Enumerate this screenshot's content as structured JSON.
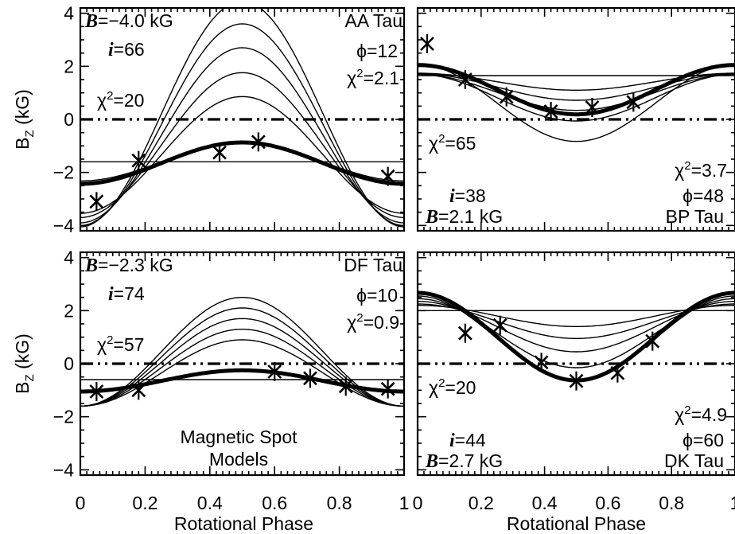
{
  "chart_data": [
    {
      "type": "line",
      "star": "AA Tau",
      "B_label": "B",
      "B_value": "=−4.0 kG",
      "i_label": "i",
      "i_value": "=66",
      "phi_text": "ϕ=12",
      "chi2_fit_value": "=2.1",
      "chi2_flat_value": "=20",
      "model_amplitude": -4.0,
      "flat_level": -1.6,
      "model_family": {
        "means": [
          -1.6,
          -1.34,
          -0.97,
          -0.6,
          -0.2,
          0.2
        ],
        "amplitudes": [
          0.72,
          2.2,
          2.73,
          3.3,
          3.8,
          4.25
        ]
      },
      "best_fit": {
        "mean": -1.65,
        "amplitude": 0.78,
        "phase_min": 0.0
      },
      "observations": {
        "x": [
          0.05,
          0.18,
          0.43,
          0.55,
          0.95
        ],
        "y": [
          -3.1,
          -1.55,
          -1.25,
          -0.85,
          -2.15
        ]
      },
      "xlim": [
        0,
        1
      ],
      "ylim": [
        -4.2,
        4.2
      ]
    },
    {
      "type": "line",
      "star": "BP Tau",
      "B_label": "B",
      "B_value": "=2.1 kG",
      "i_label": "i",
      "i_value": "=38",
      "phi_text": "ϕ=48",
      "chi2_fit_value": "=3.7",
      "chi2_flat_value": "=65",
      "model_amplitude": 2.1,
      "flat_level": 1.65,
      "model_family": {
        "means": [
          1.65,
          1.42,
          1.22,
          1.02,
          0.82,
          0.62
        ],
        "amplitudes": [
          0.05,
          0.32,
          0.5,
          0.68,
          0.88,
          1.45
        ]
      },
      "best_fit": {
        "mean": 1.12,
        "amplitude": 0.93,
        "phase_min": 0.5
      },
      "observations": {
        "x": [
          0.03,
          0.15,
          0.28,
          0.42,
          0.55,
          0.68
        ],
        "y": [
          2.85,
          1.5,
          0.85,
          0.3,
          0.45,
          0.65
        ]
      },
      "xlim": [
        0,
        1
      ],
      "ylim": [
        -4.2,
        4.2
      ]
    },
    {
      "type": "line",
      "star": "DF Tau",
      "B_label": "B",
      "B_value": "=−2.3 kG",
      "i_label": "i",
      "i_value": "=74",
      "phi_text": "ϕ=10",
      "chi2_fit_value": "=0.9",
      "chi2_flat_value": "=57",
      "model_amplitude": -2.3,
      "flat_level": -0.6,
      "model_family": {
        "means": [
          -0.6,
          -0.35,
          -0.15,
          0.05,
          0.25,
          0.45
        ],
        "amplitudes": [
          0.05,
          1.25,
          1.45,
          1.65,
          1.85,
          2.05
        ]
      },
      "best_fit": {
        "mean": -0.65,
        "amplitude": 0.4,
        "phase_min": 0.0
      },
      "observations": {
        "x": [
          0.05,
          0.18,
          0.6,
          0.71,
          0.82,
          0.95
        ],
        "y": [
          -1.05,
          -1.0,
          -0.3,
          -0.55,
          -0.85,
          -0.95
        ]
      },
      "xlim": [
        0,
        1
      ],
      "ylim": [
        -4.2,
        4.2
      ],
      "caption_line1": "Magnetic Spot",
      "caption_line2": "Models"
    },
    {
      "type": "line",
      "star": "DK Tau",
      "B_label": "B",
      "B_value": "=2.7 kG",
      "i_label": "i",
      "i_value": "=44",
      "phi_text": "ϕ=60",
      "chi2_fit_value": "=4.9",
      "chi2_flat_value": "=20",
      "model_amplitude": 2.7,
      "flat_level": 2.0,
      "model_family": {
        "means": [
          2.0,
          1.8,
          1.6,
          1.4,
          1.15,
          0.95
        ],
        "amplitudes": [
          0.05,
          0.4,
          0.65,
          0.95,
          1.3,
          1.6
        ]
      },
      "best_fit": {
        "mean": 1.02,
        "amplitude": 1.65,
        "phase_min": 0.5
      },
      "observations": {
        "x": [
          0.15,
          0.26,
          0.39,
          0.5,
          0.63,
          0.74
        ],
        "y": [
          1.15,
          1.45,
          0.05,
          -0.65,
          -0.35,
          0.85
        ]
      },
      "xlim": [
        0,
        1
      ],
      "ylim": [
        -4.2,
        4.2
      ]
    }
  ],
  "y_title_main": "B",
  "y_title_sub": "Z",
  "y_title_unit": "(kG)",
  "x_title": "Rotational Phase",
  "chi_symbol": "χ",
  "chi_exponent": "2",
  "x_ticks": [
    "0",
    "0.2",
    "0.4",
    "0.6",
    "0.8",
    "1"
  ],
  "y_ticks": [
    "−4",
    "−2",
    "0",
    "2",
    "4"
  ]
}
